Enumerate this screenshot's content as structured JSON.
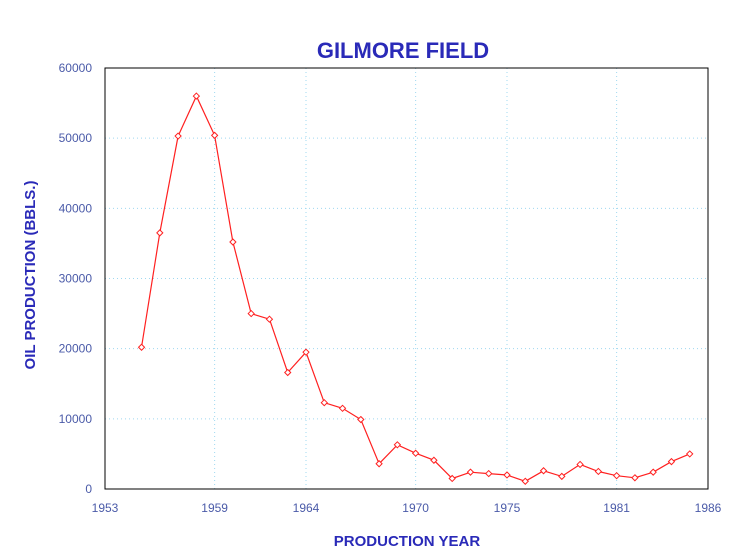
{
  "chart_data": {
    "type": "line",
    "title": "GILMORE FIELD",
    "xlabel": "PRODUCTION YEAR",
    "ylabel": "OIL PRODUCTION (BBLS.)",
    "xlim": [
      1953,
      1986
    ],
    "ylim": [
      0,
      60000
    ],
    "xticks": [
      1953,
      1959,
      1964,
      1970,
      1975,
      1981,
      1986
    ],
    "yticks": [
      0,
      10000,
      20000,
      30000,
      40000,
      50000,
      60000
    ],
    "grid": true,
    "series": [
      {
        "x": [
          1955,
          1956,
          1957,
          1958,
          1959,
          1960,
          1961,
          1962,
          1963,
          1964,
          1965,
          1966,
          1967,
          1968,
          1969,
          1970,
          1971,
          1972,
          1973,
          1974,
          1975,
          1976,
          1977,
          1978,
          1979,
          1980,
          1981,
          1982,
          1983,
          1984,
          1985
        ],
        "y": [
          20200,
          36500,
          50300,
          56000,
          50400,
          35200,
          25000,
          24200,
          16600,
          19500,
          12300,
          11500,
          9900,
          3600,
          6300,
          5100,
          4100,
          1500,
          2400,
          2200,
          2000,
          1100,
          2600,
          1800,
          3500,
          2500,
          1900,
          1600,
          2400,
          3900,
          5000
        ]
      }
    ],
    "colors": {
      "line": "#ff2020",
      "grid": "#9fd8f0",
      "text": "#2a2ab8",
      "tick_text": "#4a5aa8",
      "axis": "#000000"
    }
  }
}
